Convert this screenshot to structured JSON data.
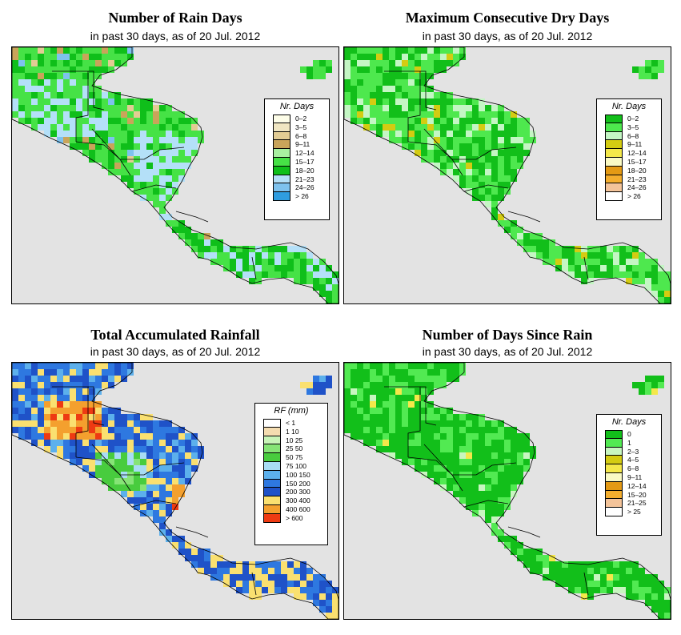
{
  "panels": [
    {
      "title": "Number of Rain Days",
      "subtitle": "in past 30 days, as of  20 Jul. 2012",
      "legend_title": "Nr. Days",
      "scheme": "raindays",
      "legend": [
        {
          "label": "0–2",
          "color": "#fdfde8"
        },
        {
          "label": "3–5",
          "color": "#f0e6c2"
        },
        {
          "label": "6–8",
          "color": "#e2cc94"
        },
        {
          "label": "9–11",
          "color": "#c9a45a"
        },
        {
          "label": "12–14",
          "color": "#a8f0a0"
        },
        {
          "label": "15–17",
          "color": "#46e246"
        },
        {
          "label": "18–20",
          "color": "#0fbf1a"
        },
        {
          "label": "21–23",
          "color": "#b4e0f8"
        },
        {
          "label": "24–26",
          "color": "#7ec2ee"
        },
        {
          "label": "> 26",
          "color": "#2f9de0"
        }
      ]
    },
    {
      "title": "Maximum Consecutive Dry Days",
      "subtitle": "in past 30 days, as of  20 Jul. 2012",
      "legend_title": "Nr. Days",
      "scheme": "drydays",
      "legend": [
        {
          "label": "0–2",
          "color": "#12bf1a"
        },
        {
          "label": "3–5",
          "color": "#4ee84e"
        },
        {
          "label": "6–8",
          "color": "#c4f6c4"
        },
        {
          "label": "9–11",
          "color": "#d4cc12"
        },
        {
          "label": "12–14",
          "color": "#f4e84a"
        },
        {
          "label": "15–17",
          "color": "#fafac4"
        },
        {
          "label": "18–20",
          "color": "#e49a14"
        },
        {
          "label": "21–23",
          "color": "#f4ae2e"
        },
        {
          "label": "24–26",
          "color": "#f4c49a"
        },
        {
          "label": "> 26",
          "color": "#ffffff"
        }
      ]
    },
    {
      "title": "Total Accumulated Rainfall",
      "subtitle": "in past 30 days, as of  20 Jul. 2012",
      "legend_title": "RF (mm)",
      "scheme": "rainfall",
      "legend": [
        {
          "label": "< 1",
          "color": "#ffffff"
        },
        {
          "label": "1   10",
          "color": "#f4dcb0"
        },
        {
          "label": "10   25",
          "color": "#c8f4b8"
        },
        {
          "label": "25   50",
          "color": "#86e476"
        },
        {
          "label": "50   75",
          "color": "#48cc3e"
        },
        {
          "label": "75   100",
          "color": "#a8dcf4"
        },
        {
          "label": "100   150",
          "color": "#5cb0ec"
        },
        {
          "label": "150   200",
          "color": "#2e78e0"
        },
        {
          "label": "200   300",
          "color": "#1f52c8"
        },
        {
          "label": "300   400",
          "color": "#fae070"
        },
        {
          "label": "400   600",
          "color": "#f4a02e"
        },
        {
          "label": "> 600",
          "color": "#ee3a12"
        }
      ]
    },
    {
      "title": "Number of Days Since Rain",
      "subtitle": "in past 30 days, as of  20 Jul. 2012",
      "legend_title": "Nr. Days",
      "scheme": "sincerain",
      "legend": [
        {
          "label": "0",
          "color": "#12bf1a"
        },
        {
          "label": "1",
          "color": "#52ea52"
        },
        {
          "label": "2–3",
          "color": "#c8f6c0"
        },
        {
          "label": "4–5",
          "color": "#d4cc12"
        },
        {
          "label": "6–8",
          "color": "#f4e84a"
        },
        {
          "label": "9–11",
          "color": "#fafac4"
        },
        {
          "label": "12–14",
          "color": "#e49a14"
        },
        {
          "label": "15–20",
          "color": "#f4ae2e"
        },
        {
          "label": "21–25",
          "color": "#f4c49a"
        },
        {
          "label": "> 25",
          "color": "#ffffff"
        }
      ]
    }
  ],
  "colors": {
    "map_background": "#e3e3e3",
    "border": "#000000"
  }
}
